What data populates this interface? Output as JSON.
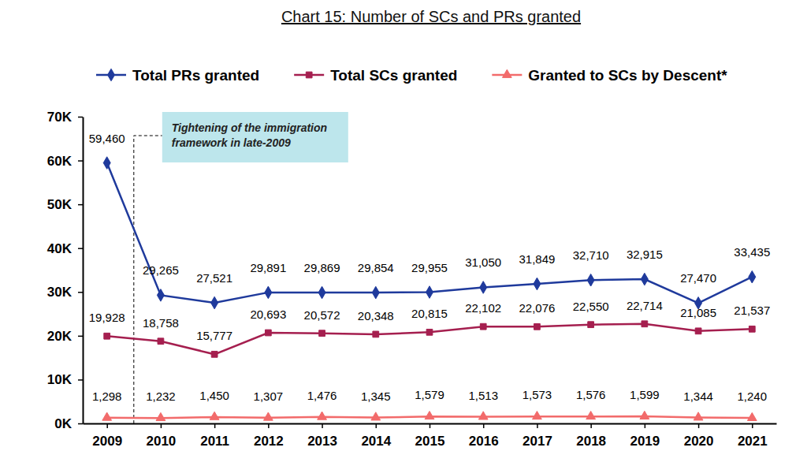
{
  "chart_data": {
    "type": "line",
    "title": "Chart 15: Number of SCs and PRs granted",
    "categories": [
      "2009",
      "2010",
      "2011",
      "2012",
      "2013",
      "2014",
      "2015",
      "2016",
      "2017",
      "2018",
      "2019",
      "2020",
      "2021"
    ],
    "series": [
      {
        "name": "Total PRs granted",
        "color": "#1f3a9c",
        "marker": "diamond",
        "line_style": "solid",
        "values": [
          59460,
          29265,
          27521,
          29891,
          29869,
          29854,
          29955,
          31050,
          31849,
          32710,
          32915,
          27470,
          33435
        ],
        "value_labels": [
          "59,460",
          "29,265",
          "27,521",
          "29,891",
          "29,869",
          "29,854",
          "29,955",
          "31,050",
          "31,849",
          "32,710",
          "32,915",
          "27,470",
          "33,435"
        ]
      },
      {
        "name": "Total SCs granted",
        "color": "#a51f4f",
        "marker": "square",
        "line_style": "solid",
        "values": [
          19928,
          18758,
          15777,
          20693,
          20572,
          20348,
          20815,
          22102,
          22076,
          22550,
          22714,
          21085,
          21537
        ],
        "value_labels": [
          "19,928",
          "18,758",
          "15,777",
          "20,693",
          "20,572",
          "20,348",
          "20,815",
          "22,102",
          "22,076",
          "22,550",
          "22,714",
          "21,085",
          "21,537"
        ]
      },
      {
        "name": "Granted to SCs by Descent*",
        "color": "#f26b6b",
        "marker": "triangle",
        "line_style": "solid",
        "values": [
          1298,
          1232,
          1450,
          1307,
          1476,
          1345,
          1579,
          1513,
          1573,
          1576,
          1599,
          1344,
          1240
        ],
        "value_labels": [
          "1,298",
          "1,232",
          "1,450",
          "1,307",
          "1,476",
          "1,345",
          "1,579",
          "1,513",
          "1,573",
          "1,576",
          "1,599",
          "1,344",
          "1,240"
        ]
      }
    ],
    "ylim": [
      0,
      70000
    ],
    "yticks": [
      {
        "value": 0,
        "label": "0K"
      },
      {
        "value": 10000,
        "label": "10K"
      },
      {
        "value": 20000,
        "label": "20K"
      },
      {
        "value": 30000,
        "label": "30K"
      },
      {
        "value": 40000,
        "label": "40K"
      },
      {
        "value": 50000,
        "label": "50K"
      },
      {
        "value": 60000,
        "label": "60K"
      },
      {
        "value": 70000,
        "label": "70K"
      }
    ],
    "grid": false,
    "legend": "top",
    "data_labels": true,
    "annotations": [
      "Tightening of the immigration framework in late-2009"
    ]
  }
}
